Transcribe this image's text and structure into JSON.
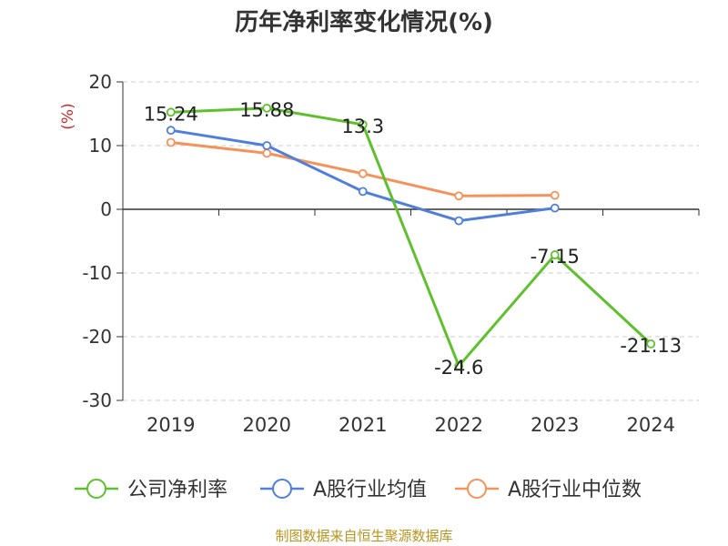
{
  "chart_data": {
    "type": "line",
    "title": "历年净利率变化情况(%)",
    "ylabel": "(%)",
    "xlabel": "",
    "categories": [
      "2019",
      "2020",
      "2021",
      "2022",
      "2023",
      "2024"
    ],
    "ylim": [
      -30,
      20
    ],
    "yticks": [
      20,
      10,
      0,
      -10,
      -20,
      -30
    ],
    "grid": true,
    "legend_position": "bottom",
    "series": [
      {
        "name": "公司净利率",
        "color": "#5fc02e",
        "values": [
          15.24,
          15.88,
          13.3,
          -24.6,
          -7.15,
          -21.13
        ],
        "labels": [
          "15.24",
          "15.88",
          "13.3",
          "-24.6",
          "-7.15",
          "-21.13"
        ]
      },
      {
        "name": "A股行业均值",
        "color": "#4f7fdb",
        "values": [
          12.4,
          10.0,
          2.8,
          -1.8,
          0.2,
          null
        ]
      },
      {
        "name": "A股行业中位数",
        "color": "#f5925a",
        "values": [
          10.5,
          8.8,
          5.6,
          2.1,
          2.2,
          null
        ]
      }
    ]
  },
  "source_note": "制图数据来自恒生聚源数据库"
}
